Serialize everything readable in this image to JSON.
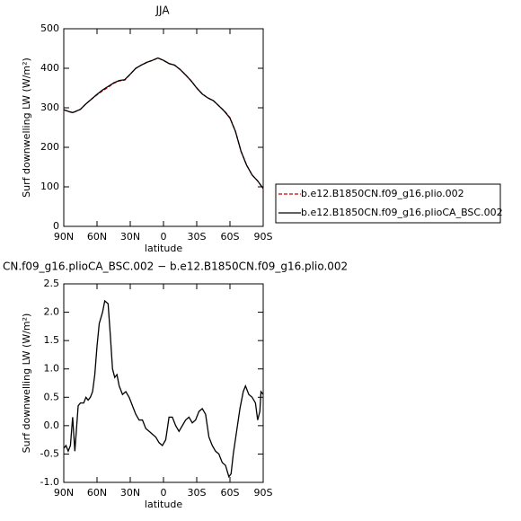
{
  "chart_data": [
    {
      "type": "line",
      "title": "JJA",
      "ylabel": "Surf downwelling LW (W/m²)",
      "xlabel": "latitude",
      "xlim": [
        90,
        -90
      ],
      "ylim": [
        0,
        500
      ],
      "xticks": [
        {
          "value": 90,
          "label": "90N"
        },
        {
          "value": 60,
          "label": "60N"
        },
        {
          "value": 30,
          "label": "30N"
        },
        0,
        {
          "value": -30,
          "label": "30S"
        },
        {
          "value": -60,
          "label": "60S"
        },
        {
          "value": -90,
          "label": "90S"
        }
      ],
      "yticks": [
        0,
        100,
        200,
        300,
        400,
        500
      ],
      "legend": "right",
      "x": [
        90,
        85,
        82,
        80,
        75,
        70,
        65,
        60,
        55,
        50,
        45,
        40,
        35,
        30,
        25,
        20,
        15,
        10,
        5,
        0,
        -5,
        -10,
        -15,
        -20,
        -25,
        -30,
        -35,
        -40,
        -45,
        -50,
        -55,
        -60,
        -65,
        -70,
        -75,
        -80,
        -85,
        -90
      ],
      "series": [
        {
          "name": "b.e12.B1850CN.f09_g16.plio.002",
          "color": "#cc0000",
          "linestyle": "dashed",
          "values": [
            295,
            290,
            288,
            290,
            296,
            310,
            322,
            333,
            343,
            352,
            362,
            368,
            370,
            385,
            400,
            408,
            415,
            420,
            426,
            420,
            412,
            408,
            397,
            383,
            368,
            350,
            335,
            325,
            318,
            305,
            292,
            275,
            240,
            190,
            155,
            130,
            115,
            95
          ]
        },
        {
          "name": "b.e12.B1850CN.f09_g16.plioCA_BSC.002",
          "color": "#000000",
          "linestyle": "solid",
          "values": [
            295,
            290,
            288,
            290,
            296,
            310,
            322,
            334,
            345,
            354,
            363,
            369,
            371,
            385,
            400,
            408,
            415,
            420,
            426,
            420,
            412,
            408,
            397,
            383,
            368,
            350,
            335,
            325,
            318,
            305,
            291,
            274,
            240,
            190,
            155,
            130,
            115,
            96
          ]
        }
      ]
    },
    {
      "type": "line",
      "title": "CN.f09_g16.plioCA_BSC.002 − b.e12.B1850CN.f09_g16.plio.002",
      "ylabel": "Surf downwelling LW (W/m²)",
      "xlabel": "latitude",
      "xlim": [
        90,
        -90
      ],
      "ylim": [
        -1.0,
        2.5
      ],
      "xticks": [
        {
          "value": 90,
          "label": "90N"
        },
        {
          "value": 60,
          "label": "60N"
        },
        {
          "value": 30,
          "label": "30N"
        },
        0,
        {
          "value": -30,
          "label": "30S"
        },
        {
          "value": -60,
          "label": "60S"
        },
        {
          "value": -90,
          "label": "90S"
        }
      ],
      "yticks": [
        {
          "value": -1.0,
          "label": "-1.0"
        },
        -0.5,
        {
          "value": 0.0,
          "label": "0.0"
        },
        0.5,
        {
          "value": 1.0,
          "label": "1.0"
        },
        1.5,
        {
          "value": 2.0,
          "label": "2.0"
        },
        2.5
      ],
      "x": [
        90,
        88,
        86,
        84,
        82,
        80,
        77,
        75,
        72,
        70,
        68,
        66,
        64,
        62,
        60,
        58,
        55,
        53,
        50,
        48,
        46,
        44,
        42,
        40,
        37,
        34,
        31,
        28,
        25,
        22,
        19,
        16,
        13,
        10,
        7,
        4,
        1,
        -2,
        -5,
        -8,
        -11,
        -14,
        -17,
        -20,
        -23,
        -26,
        -29,
        -32,
        -35,
        -38,
        -41,
        -44,
        -47,
        -50,
        -53,
        -56,
        -59,
        -61,
        -63,
        -66,
        -69,
        -72,
        -74,
        -77,
        -80,
        -83,
        -85,
        -87,
        -88,
        -90
      ],
      "series": [
        {
          "color": "#000000",
          "linestyle": "solid",
          "values": [
            -0.4,
            -0.35,
            -0.45,
            -0.35,
            0.15,
            -0.45,
            0.35,
            0.4,
            0.4,
            0.5,
            0.45,
            0.5,
            0.6,
            0.9,
            1.4,
            1.8,
            2.0,
            2.2,
            2.15,
            1.6,
            1.0,
            0.85,
            0.9,
            0.7,
            0.55,
            0.6,
            0.5,
            0.35,
            0.2,
            0.1,
            0.1,
            -0.05,
            -0.1,
            -0.15,
            -0.2,
            -0.3,
            -0.35,
            -0.25,
            0.15,
            0.15,
            0.0,
            -0.1,
            0.0,
            0.1,
            0.15,
            0.05,
            0.1,
            0.25,
            0.3,
            0.2,
            -0.2,
            -0.35,
            -0.45,
            -0.5,
            -0.65,
            -0.7,
            -0.9,
            -0.85,
            -0.5,
            -0.1,
            0.3,
            0.6,
            0.7,
            0.55,
            0.5,
            0.4,
            0.1,
            0.25,
            0.6,
            0.55
          ]
        }
      ]
    }
  ]
}
